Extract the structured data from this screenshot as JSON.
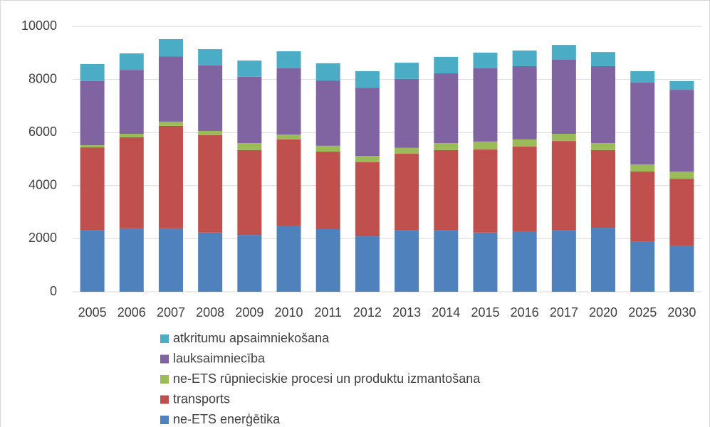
{
  "chart_data": {
    "type": "stacked-bar",
    "categories": [
      "2005",
      "2006",
      "2007",
      "2008",
      "2009",
      "2010",
      "2011",
      "2012",
      "2013",
      "2014",
      "2015",
      "2016",
      "2017",
      "2020",
      "2025",
      "2030"
    ],
    "series": [
      {
        "name": "ne-ETS enerģētika",
        "color": "#4f81bd",
        "values": [
          2330,
          2390,
          2390,
          2230,
          2140,
          2470,
          2360,
          2090,
          2330,
          2330,
          2230,
          2280,
          2330,
          2410,
          1880,
          1720
        ]
      },
      {
        "name": "transports",
        "color": "#c0504d",
        "values": [
          3110,
          3430,
          3860,
          3670,
          3200,
          3270,
          2920,
          2790,
          2870,
          3010,
          3130,
          3190,
          3350,
          2930,
          2650,
          2540
        ]
      },
      {
        "name": "ne-ETS rūpnieciskie procesi un produktu izmantošana",
        "color": "#9bbb59",
        "values": [
          80,
          130,
          160,
          160,
          260,
          180,
          220,
          240,
          220,
          260,
          300,
          270,
          270,
          260,
          270,
          270
        ]
      },
      {
        "name": "lauksaimniecība",
        "color": "#8064a2",
        "values": [
          2420,
          2410,
          2460,
          2470,
          2500,
          2500,
          2460,
          2570,
          2600,
          2630,
          2760,
          2760,
          2790,
          2900,
          3080,
          3080
        ]
      },
      {
        "name": "atkritumu apsaimniekošana",
        "color": "#4bacc6",
        "values": [
          640,
          620,
          650,
          610,
          610,
          640,
          650,
          620,
          610,
          620,
          590,
          590,
          560,
          530,
          430,
          330
        ]
      }
    ],
    "ylim": [
      0,
      10000
    ],
    "yticks": [
      0,
      2000,
      4000,
      6000,
      8000,
      10000
    ],
    "grid": true,
    "legend": "bottom"
  }
}
